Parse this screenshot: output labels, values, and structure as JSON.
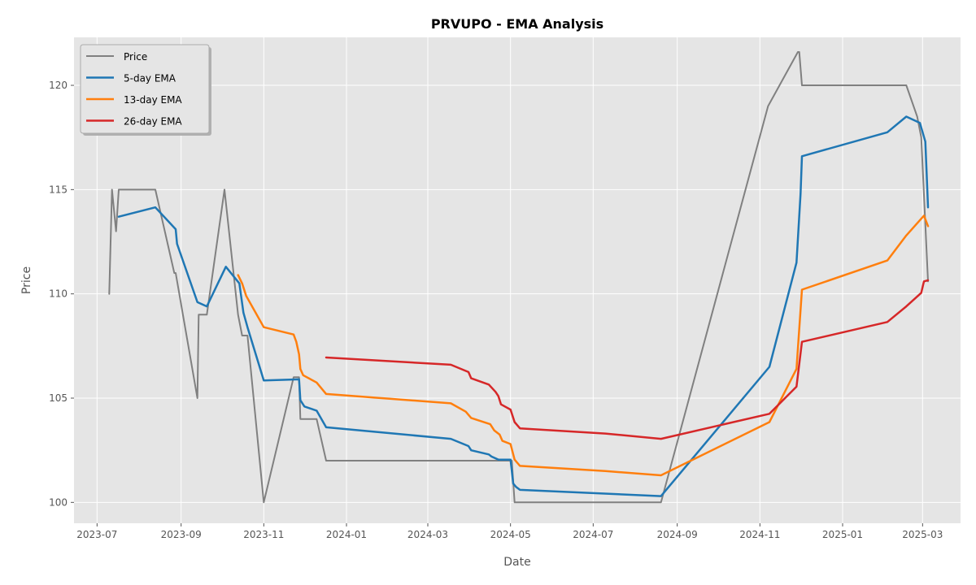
{
  "chart_data": {
    "type": "line",
    "title": "PRVUPO - EMA Analysis",
    "xlabel": "Date",
    "ylabel": "Price",
    "x_range": [
      "2023-06-14",
      "2025-03-29"
    ],
    "ylim": [
      99,
      122.3
    ],
    "x_ticks": [
      "2023-07-01",
      "2023-09-01",
      "2023-11-01",
      "2024-01-01",
      "2024-03-01",
      "2024-05-01",
      "2024-07-01",
      "2024-09-01",
      "2024-11-01",
      "2025-01-01",
      "2025-03-01"
    ],
    "x_tick_labels": [
      "2023-07",
      "2023-09",
      "2023-11",
      "2024-01",
      "2024-03",
      "2024-05",
      "2024-07",
      "2024-09",
      "2024-11",
      "2025-01",
      "2025-03"
    ],
    "y_ticks": [
      100,
      105,
      110,
      115,
      120
    ],
    "y_tick_labels": [
      "100",
      "105",
      "110",
      "115",
      "120"
    ],
    "grid": true,
    "legend_position": "upper-left",
    "series": [
      {
        "name": "Price",
        "color": "#808080",
        "x": [
          "2023-07-10",
          "2023-07-12",
          "2023-07-15",
          "2023-07-17",
          "2023-08-13",
          "2023-08-27",
          "2023-08-28",
          "2023-09-13",
          "2023-09-14",
          "2023-09-20",
          "2023-10-03",
          "2023-10-13",
          "2023-10-16",
          "2023-10-19",
          "2023-10-20",
          "2023-11-01",
          "2023-11-23",
          "2023-11-27",
          "2023-11-28",
          "2023-12-10",
          "2023-12-17",
          "2024-03-18",
          "2024-04-20",
          "2024-05-02",
          "2024-05-04",
          "2024-08-20",
          "2024-11-07",
          "2024-11-29",
          "2024-11-30",
          "2024-12-02",
          "2025-02-17",
          "2025-02-25",
          "2025-02-28",
          "2025-03-05"
        ],
        "values": [
          110,
          115,
          113,
          115,
          115,
          111,
          111,
          105,
          109,
          109,
          115,
          109,
          108,
          108,
          108,
          100,
          106,
          106,
          104,
          104,
          102,
          102,
          102,
          102,
          100,
          100,
          119,
          121.6,
          121.6,
          120,
          120,
          118.5,
          117.5,
          110.6
        ]
      },
      {
        "name": "5-day EMA",
        "color": "#1f77b4",
        "x": [
          "2023-07-17",
          "2023-08-13",
          "2023-08-28",
          "2023-08-29",
          "2023-09-13",
          "2023-09-20",
          "2023-10-04",
          "2023-10-14",
          "2023-10-17",
          "2023-10-20",
          "2023-11-01",
          "2023-11-27",
          "2023-11-28",
          "2023-12-01",
          "2023-12-10",
          "2023-12-17",
          "2024-03-18",
          "2024-03-31",
          "2024-04-02",
          "2024-04-15",
          "2024-04-17",
          "2024-04-22",
          "2024-05-01",
          "2024-05-03",
          "2024-05-05",
          "2024-05-08",
          "2024-08-20",
          "2024-11-08",
          "2024-11-28",
          "2024-12-01",
          "2024-12-02",
          "2025-02-03",
          "2025-02-17",
          "2025-02-27",
          "2025-03-03",
          "2025-03-04",
          "2025-03-05"
        ],
        "values": [
          113.7,
          114.15,
          113.1,
          112.4,
          109.6,
          109.4,
          111.3,
          110.5,
          109.1,
          108.4,
          105.85,
          105.9,
          104.9,
          104.6,
          104.4,
          103.6,
          103.05,
          102.7,
          102.5,
          102.3,
          102.2,
          102.05,
          102.05,
          100.9,
          100.75,
          100.6,
          100.3,
          106.5,
          111.5,
          114.8,
          116.6,
          117.75,
          118.5,
          118.2,
          117.3,
          115.8,
          114.15
        ]
      },
      {
        "name": "13-day EMA",
        "color": "#ff7f0e",
        "x": [
          "2023-10-13",
          "2023-10-16",
          "2023-10-19",
          "2023-11-01",
          "2023-11-23",
          "2023-11-25",
          "2023-11-27",
          "2023-11-28",
          "2023-11-30",
          "2023-12-10",
          "2023-12-17",
          "2024-03-18",
          "2024-03-29",
          "2024-04-02",
          "2024-04-16",
          "2024-04-19",
          "2024-04-23",
          "2024-04-25",
          "2024-05-01",
          "2024-05-04",
          "2024-05-08",
          "2024-07-10",
          "2024-08-20",
          "2024-11-08",
          "2024-11-28",
          "2024-12-02",
          "2025-02-03",
          "2025-02-17",
          "2025-03-02",
          "2025-03-05"
        ],
        "values": [
          110.9,
          110.5,
          109.9,
          108.4,
          108.05,
          107.7,
          107.1,
          106.4,
          106.1,
          105.75,
          105.2,
          104.75,
          104.35,
          104.05,
          103.75,
          103.45,
          103.25,
          102.95,
          102.8,
          102.05,
          101.75,
          101.5,
          101.3,
          103.85,
          106.4,
          110.2,
          111.6,
          112.8,
          113.75,
          113.25
        ]
      },
      {
        "name": "26-day EMA",
        "color": "#d62728",
        "x": [
          "2023-12-17",
          "2024-03-18",
          "2024-03-31",
          "2024-04-02",
          "2024-04-15",
          "2024-04-20",
          "2024-04-22",
          "2024-04-24",
          "2024-05-01",
          "2024-05-04",
          "2024-05-08",
          "2024-07-10",
          "2024-08-20",
          "2024-11-08",
          "2024-11-28",
          "2024-12-02",
          "2025-02-03",
          "2025-02-17",
          "2025-02-28",
          "2025-03-02",
          "2025-03-05"
        ],
        "values": [
          106.95,
          106.6,
          106.25,
          105.95,
          105.65,
          105.3,
          105.1,
          104.7,
          104.45,
          103.85,
          103.55,
          103.3,
          103.05,
          104.25,
          105.55,
          107.7,
          108.65,
          109.4,
          110.05,
          110.6,
          110.65
        ]
      }
    ]
  }
}
